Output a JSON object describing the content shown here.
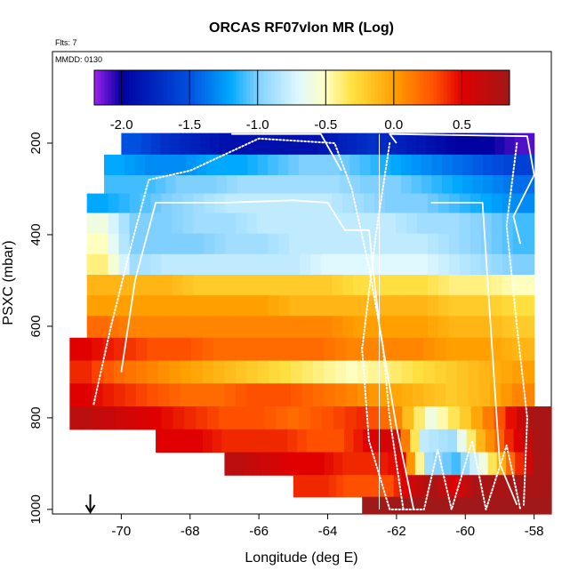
{
  "chart_data": {
    "type": "heatmap",
    "title": "ORCAS RF07vlon MR (Log)",
    "subtitle_flights": "Flts: 7",
    "subtitle_date": "MMDD: 0130",
    "xlabel": "Longitude (deg E)",
    "ylabel": "PSXC (mbar)",
    "xlim": [
      -72.0,
      -57.5
    ],
    "ylim": [
      1010,
      0
    ],
    "x_ticks": [
      -70,
      -68,
      -66,
      -64,
      -62,
      -60,
      -58
    ],
    "y_ticks": [
      200,
      400,
      600,
      800,
      1000
    ],
    "x_tick_labels": [
      "-70",
      "-68",
      "-66",
      "-64",
      "-62",
      "-60",
      "-58"
    ],
    "y_tick_labels": [
      "200",
      "400",
      "600",
      "800",
      "1000"
    ],
    "colorbar": {
      "range": [
        -2.2,
        0.85
      ],
      "ticks": [
        -2.0,
        -1.5,
        -1.0,
        -0.5,
        0.0,
        0.5
      ],
      "tick_labels": [
        "-2.0",
        "-1.5",
        "-1.0",
        "-0.5",
        "0.0",
        "0.5"
      ],
      "stops": [
        {
          "v": -2.2,
          "c": "#a020f0"
        },
        {
          "v": -2.0,
          "c": "#0000a0"
        },
        {
          "v": -1.5,
          "c": "#0050e0"
        },
        {
          "v": -1.2,
          "c": "#00a8ff"
        },
        {
          "v": -1.0,
          "c": "#80d0ff"
        },
        {
          "v": -0.7,
          "c": "#e0f8ff"
        },
        {
          "v": -0.5,
          "c": "#ffffc0"
        },
        {
          "v": -0.3,
          "c": "#ffe040"
        },
        {
          "v": 0.0,
          "c": "#ffa000"
        },
        {
          "v": 0.3,
          "c": "#ff5000"
        },
        {
          "v": 0.5,
          "c": "#e00000"
        },
        {
          "v": 0.85,
          "c": "#a01818"
        }
      ]
    },
    "bands": [
      {
        "p": 200,
        "x0": -70.0,
        "x1": -58.0,
        "v": [
          -1.5,
          -1.7,
          -1.8,
          -1.9,
          -1.9,
          -1.9,
          -1.9,
          -1.8,
          -1.7,
          -1.8,
          -1.9,
          -2.0,
          -2.0,
          -2.1
        ]
      },
      {
        "p": 250,
        "x0": -70.5,
        "x1": -58.0,
        "v": [
          -1.2,
          -1.3,
          -1.3,
          -1.2,
          -1.2,
          -1.1,
          -1.0,
          -1.0,
          -1.1,
          -1.2,
          -1.3,
          -1.4,
          -1.5,
          -1.6
        ]
      },
      {
        "p": 290,
        "x0": -70.5,
        "x1": -58.0,
        "v": [
          -1.1,
          -1.1,
          -1.0,
          -1.0,
          -0.9,
          -0.9,
          -0.9,
          -0.9,
          -1.0,
          -1.0,
          -1.1,
          -1.2,
          -1.3,
          -1.4
        ]
      },
      {
        "p": 330,
        "x0": -71.0,
        "x1": -58.0,
        "v": [
          -1.2,
          -1.1,
          -1.0,
          -0.9,
          -0.8,
          -0.8,
          -0.8,
          -0.8,
          -0.9,
          -1.0,
          -1.0,
          -1.1,
          -1.2,
          -1.3
        ]
      },
      {
        "p": 375,
        "x0": -71.0,
        "x1": -58.0,
        "v": [
          -0.6,
          -1.0,
          -1.0,
          -0.9,
          -0.9,
          -0.8,
          -0.8,
          -0.8,
          -0.8,
          -0.8,
          -0.9,
          -0.9,
          -1.0,
          -1.1
        ]
      },
      {
        "p": 420,
        "x0": -71.0,
        "x1": -58.0,
        "v": [
          -0.5,
          -1.0,
          -1.0,
          -1.0,
          -0.9,
          -0.9,
          -0.8,
          -0.8,
          -0.8,
          -0.8,
          -0.8,
          -0.9,
          -1.0,
          -1.1
        ]
      },
      {
        "p": 465,
        "x0": -71.0,
        "x1": -58.0,
        "v": [
          -0.4,
          -0.9,
          -0.8,
          -0.8,
          -0.8,
          -0.8,
          -0.8,
          -0.7,
          -0.7,
          -0.7,
          -0.7,
          -0.8,
          -0.9,
          -1.0
        ]
      },
      {
        "p": 510,
        "x0": -71.0,
        "x1": -58.0,
        "v": [
          -0.1,
          -0.1,
          -0.1,
          -0.2,
          -0.2,
          -0.2,
          -0.2,
          -0.2,
          -0.3,
          -0.3,
          -0.3,
          -0.4,
          -0.4,
          -0.5
        ]
      },
      {
        "p": 555,
        "x0": -71.0,
        "x1": -58.0,
        "v": [
          0.0,
          0.0,
          0.0,
          0.0,
          0.0,
          0.0,
          -0.1,
          -0.1,
          -0.1,
          -0.1,
          -0.1,
          -0.2,
          -0.2,
          -0.3
        ]
      },
      {
        "p": 600,
        "x0": -71.0,
        "x1": -58.0,
        "v": [
          0.2,
          0.1,
          0.1,
          0.1,
          0.1,
          0.1,
          0.1,
          0.1,
          0.0,
          0.0,
          0.0,
          -0.1,
          -0.1,
          -0.2
        ]
      },
      {
        "p": 650,
        "x0": -71.5,
        "x1": -58.0,
        "v": [
          0.5,
          0.4,
          0.3,
          0.3,
          0.2,
          0.2,
          0.2,
          0.2,
          0.1,
          0.1,
          0.1,
          0.0,
          0.0,
          -0.1
        ]
      },
      {
        "p": 700,
        "x0": -71.5,
        "x1": -58.0,
        "v": [
          0.4,
          0.2,
          0.1,
          0.0,
          -0.1,
          -0.2,
          -0.3,
          -0.4,
          -0.5,
          -0.4,
          -0.3,
          -0.2,
          -0.1,
          0.0
        ]
      },
      {
        "p": 750,
        "x0": -71.5,
        "x1": -58.0,
        "v": [
          0.5,
          0.4,
          0.3,
          0.2,
          0.2,
          0.3,
          0.3,
          0.2,
          0.1,
          0.0,
          -0.1,
          -0.2,
          -0.1,
          0.1
        ]
      },
      {
        "p": 800,
        "x0": -71.5,
        "x1": -57.5,
        "v": [
          0.7,
          0.6,
          0.5,
          0.4,
          0.3,
          0.3,
          0.2,
          0.3,
          0.4,
          0.1,
          -0.6,
          -0.2,
          0.3,
          0.8
        ]
      },
      {
        "p": 850,
        "x0": -69.0,
        "x1": -57.5,
        "v": [
          0.5,
          0.5,
          0.4,
          0.4,
          0.4,
          0.3,
          0.3,
          0.5,
          0.6,
          -0.8,
          -0.9,
          -0.1,
          0.4,
          0.8
        ]
      },
      {
        "p": 900,
        "x0": -67.0,
        "x1": -57.5,
        "v": [
          0.7,
          0.6,
          0.5,
          0.5,
          0.4,
          0.4,
          0.5,
          -0.9,
          -1.1,
          -0.6,
          0.2,
          0.8
        ]
      },
      {
        "p": 950,
        "x0": -65.0,
        "x1": -57.5,
        "v": [
          0.4,
          0.4,
          0.3,
          0.3,
          0.3,
          0.6,
          0.8,
          0.5,
          0.8,
          0.8,
          0.8,
          0.8
        ]
      },
      {
        "p": 995,
        "x0": -63.0,
        "x1": -57.5,
        "v": [
          0.85,
          0.85,
          0.85,
          0.85,
          0.85,
          0.85,
          0.85,
          0.85
        ]
      }
    ],
    "flight_tracks": [
      {
        "name": "track-1",
        "style": "dotted",
        "points": [
          [
            -70.8,
            770
          ],
          [
            -70.3,
            600
          ],
          [
            -69.7,
            420
          ],
          [
            -69.2,
            280
          ],
          [
            -68.0,
            260
          ],
          [
            -66.0,
            190
          ],
          [
            -63.8,
            200
          ],
          [
            -63.3,
            300
          ],
          [
            -62.8,
            470
          ],
          [
            -62.4,
            640
          ],
          [
            -62.2,
            800
          ],
          [
            -61.8,
            1000
          ]
        ]
      },
      {
        "name": "track-2",
        "style": "solid",
        "points": [
          [
            -70.0,
            700
          ],
          [
            -69.6,
            500
          ],
          [
            -69.0,
            330
          ],
          [
            -67.0,
            330
          ],
          [
            -65.0,
            325
          ],
          [
            -64.0,
            330
          ],
          [
            -63.5,
            390
          ],
          [
            -62.8,
            390
          ],
          [
            -62.5,
            600
          ],
          [
            -62.0,
            820
          ],
          [
            -61.5,
            1000
          ]
        ]
      },
      {
        "name": "track-3",
        "style": "solid",
        "points": [
          [
            -66.8,
            180
          ],
          [
            -64.2,
            180
          ],
          [
            -63.6,
            260
          ]
        ]
      },
      {
        "name": "track-4",
        "style": "solid",
        "points": [
          [
            -62.0,
            200
          ],
          [
            -62.2,
            180
          ],
          [
            -58.2,
            185
          ],
          [
            -58.0,
            270
          ],
          [
            -58.6,
            360
          ],
          [
            -58.4,
            420
          ]
        ]
      },
      {
        "name": "track-5",
        "style": "dotted",
        "points": [
          [
            -62.2,
            200
          ],
          [
            -62.6,
            400
          ],
          [
            -63.0,
            650
          ],
          [
            -62.8,
            850
          ],
          [
            -62.2,
            1000
          ],
          [
            -61.2,
            1000
          ],
          [
            -60.8,
            870
          ],
          [
            -60.4,
            1000
          ],
          [
            -59.8,
            850
          ],
          [
            -59.4,
            1000
          ],
          [
            -58.8,
            860
          ],
          [
            -58.4,
            1000
          ]
        ]
      },
      {
        "name": "track-6",
        "style": "solid",
        "points": [
          [
            -61.0,
            330
          ],
          [
            -59.5,
            330
          ],
          [
            -59.0,
            900
          ],
          [
            -58.5,
            990
          ]
        ]
      },
      {
        "name": "track-7",
        "style": "dotted",
        "points": [
          [
            -58.5,
            200
          ],
          [
            -58.8,
            380
          ],
          [
            -58.5,
            600
          ],
          [
            -58.2,
            800
          ],
          [
            -58.3,
            990
          ]
        ]
      }
    ],
    "vertical_line_lon": -62.5,
    "marker_lon": -70.9
  }
}
